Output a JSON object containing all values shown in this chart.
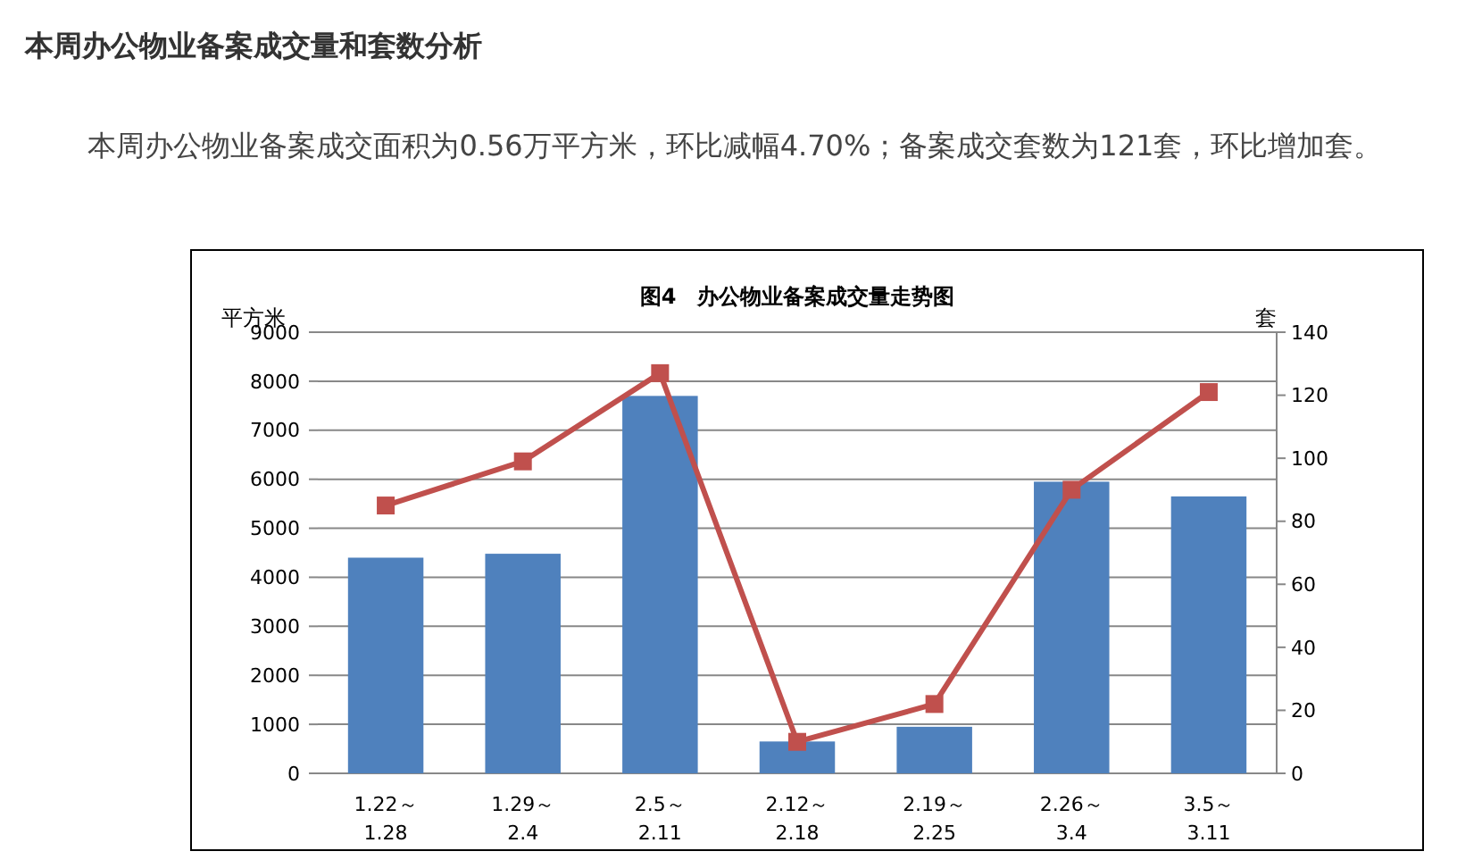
{
  "chart_data": {
    "type": "bar",
    "title": "图4　办公物业备案成交量走势图",
    "annotations": [
      "本周办公物业备案成交量和套数分析",
      "本周办公物业备案成交面积为0.56万平方米，环比减幅4.70%；备案成交套数为121套，环比增加套。"
    ],
    "categories": [
      "1.22～1.28",
      "1.29～2.4",
      "2.5～2.11",
      "2.12～2.18",
      "2.19～2.25",
      "2.26～3.4",
      "3.5～3.11"
    ],
    "series": [
      {
        "color": "#4f81bd",
        "values": [
          4400,
          4480,
          7700,
          650,
          950,
          5950,
          5650
        ]
      },
      {
        "type": "line",
        "axis": "y2",
        "color": "#c0504d",
        "marker": "square",
        "values": [
          85,
          99,
          127,
          10,
          22,
          90,
          121
        ]
      }
    ],
    "ylabel": "平方米",
    "y2label": "套",
    "ylim": [
      0,
      9000
    ],
    "yticks": [
      0,
      1000,
      2000,
      3000,
      4000,
      5000,
      6000,
      7000,
      8000,
      9000
    ],
    "y2lim": [
      0,
      140
    ],
    "y2ticks": [
      0,
      20,
      40,
      60,
      80,
      100,
      120,
      140
    ],
    "grid": "y"
  }
}
